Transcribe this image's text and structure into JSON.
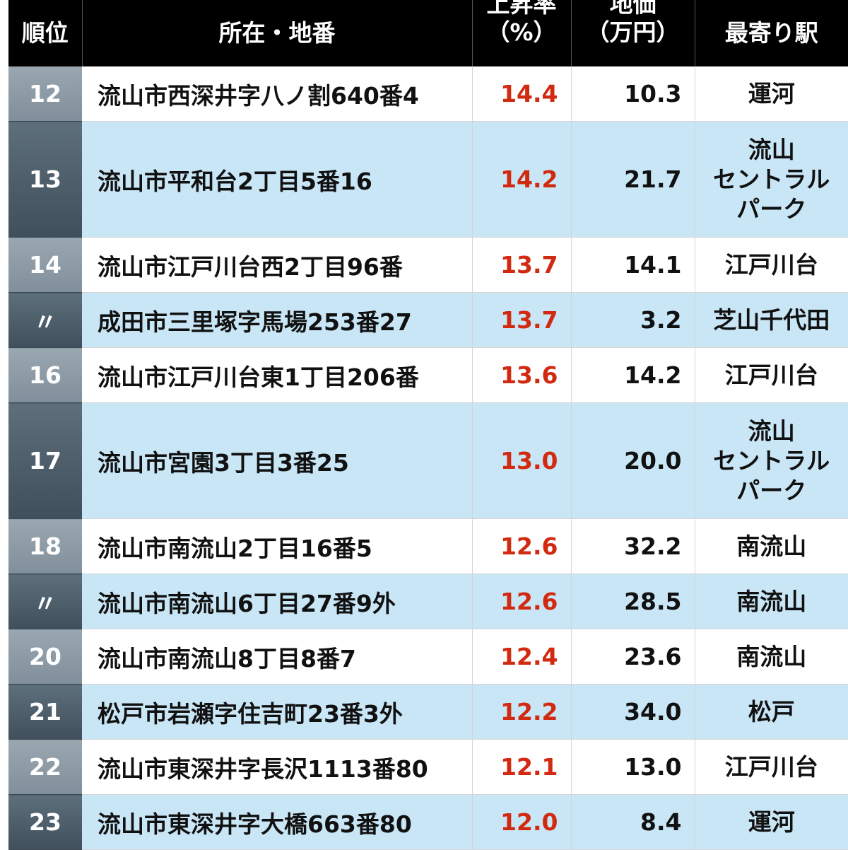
{
  "table": {
    "headers": {
      "rank": "順位",
      "address": "所在・地番",
      "rate_line1": "上昇率",
      "rate_line2": "（%）",
      "price_line1": "地価",
      "price_line2": "（万円）",
      "station": "最寄り駅"
    },
    "rows": [
      {
        "rank": "12",
        "address": "流山市西深井字八ノ割640番4",
        "rate": "14.4",
        "price": "10.3",
        "station": [
          "運河"
        ]
      },
      {
        "rank": "13",
        "address": "流山市平和台2丁目5番16",
        "rate": "14.2",
        "price": "21.7",
        "station": [
          "流山",
          "セントラル",
          "パーク"
        ]
      },
      {
        "rank": "14",
        "address": "流山市江戸川台西2丁目96番",
        "rate": "13.7",
        "price": "14.1",
        "station": [
          "江戸川台"
        ]
      },
      {
        "rank": "〃",
        "address": "成田市三里塚字馬場253番27",
        "rate": "13.7",
        "price": "3.2",
        "station": [
          "芝山千代田"
        ]
      },
      {
        "rank": "16",
        "address": "流山市江戸川台東1丁目206番",
        "rate": "13.6",
        "price": "14.2",
        "station": [
          "江戸川台"
        ]
      },
      {
        "rank": "17",
        "address": "流山市宮園3丁目3番25",
        "rate": "13.0",
        "price": "20.0",
        "station": [
          "流山",
          "セントラル",
          "パーク"
        ]
      },
      {
        "rank": "18",
        "address": "流山市南流山2丁目16番5",
        "rate": "12.6",
        "price": "32.2",
        "station": [
          "南流山"
        ]
      },
      {
        "rank": "〃",
        "address": "流山市南流山6丁目27番9外",
        "rate": "12.6",
        "price": "28.5",
        "station": [
          "南流山"
        ]
      },
      {
        "rank": "20",
        "address": "流山市南流山8丁目8番7",
        "rate": "12.4",
        "price": "23.6",
        "station": [
          "南流山"
        ]
      },
      {
        "rank": "21",
        "address": "松戸市岩瀬字住吉町23番3外",
        "rate": "12.2",
        "price": "34.0",
        "station": [
          "松戸"
        ]
      },
      {
        "rank": "22",
        "address": "流山市東深井字長沢1113番80",
        "rate": "12.1",
        "price": "13.0",
        "station": [
          "江戸川台"
        ]
      },
      {
        "rank": "23",
        "address": "流山市東深井字大橋663番80",
        "rate": "12.0",
        "price": "8.4",
        "station": [
          "運河"
        ]
      }
    ]
  },
  "colors": {
    "header_bg": "#000000",
    "row_light": "#ffffff",
    "row_blue": "#c9e6f6",
    "rate_red": "#d22a10"
  }
}
